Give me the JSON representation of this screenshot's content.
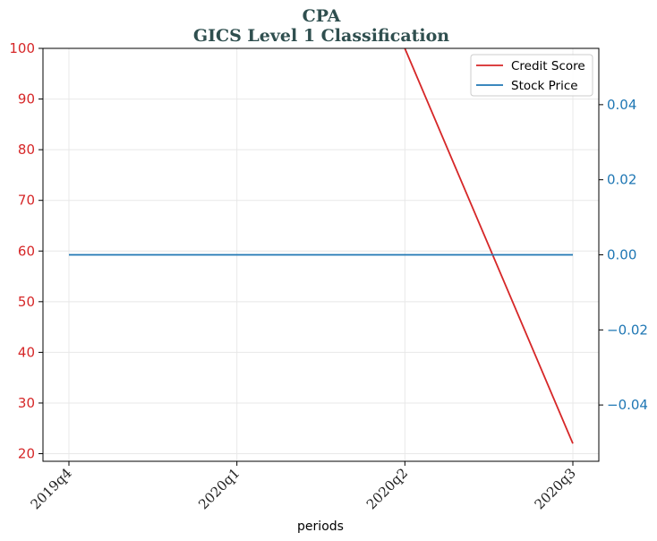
{
  "chart_data": {
    "type": "line",
    "title": "CPA",
    "subtitle": "GICS Level 1 Classification",
    "xlabel": "periods",
    "categories": [
      "2019q4",
      "2020q1",
      "2020q2",
      "2020q3"
    ],
    "y_left": {
      "ylim": [
        18.5,
        100
      ],
      "ticks": [
        20,
        30,
        40,
        50,
        60,
        70,
        80,
        90,
        100
      ],
      "color": "#d62728"
    },
    "y_right": {
      "ylim": [
        -0.055,
        0.055
      ],
      "ticks": [
        -0.04,
        -0.02,
        0.0,
        0.02,
        0.04
      ],
      "tick_labels": [
        "−0.04",
        "−0.02",
        "0.00",
        "0.02",
        "0.04"
      ],
      "color": "#1f77b4"
    },
    "series": [
      {
        "name": "Credit Score",
        "axis": "left",
        "color": "#d62728",
        "points": [
          [
            2,
            100
          ],
          [
            3,
            22
          ]
        ]
      },
      {
        "name": "Stock Price",
        "axis": "right",
        "color": "#1f77b4",
        "points": [
          [
            0,
            0
          ],
          [
            1,
            0
          ],
          [
            2,
            0
          ],
          [
            3,
            0
          ]
        ]
      }
    ],
    "legend": "top-right",
    "grid": true
  }
}
